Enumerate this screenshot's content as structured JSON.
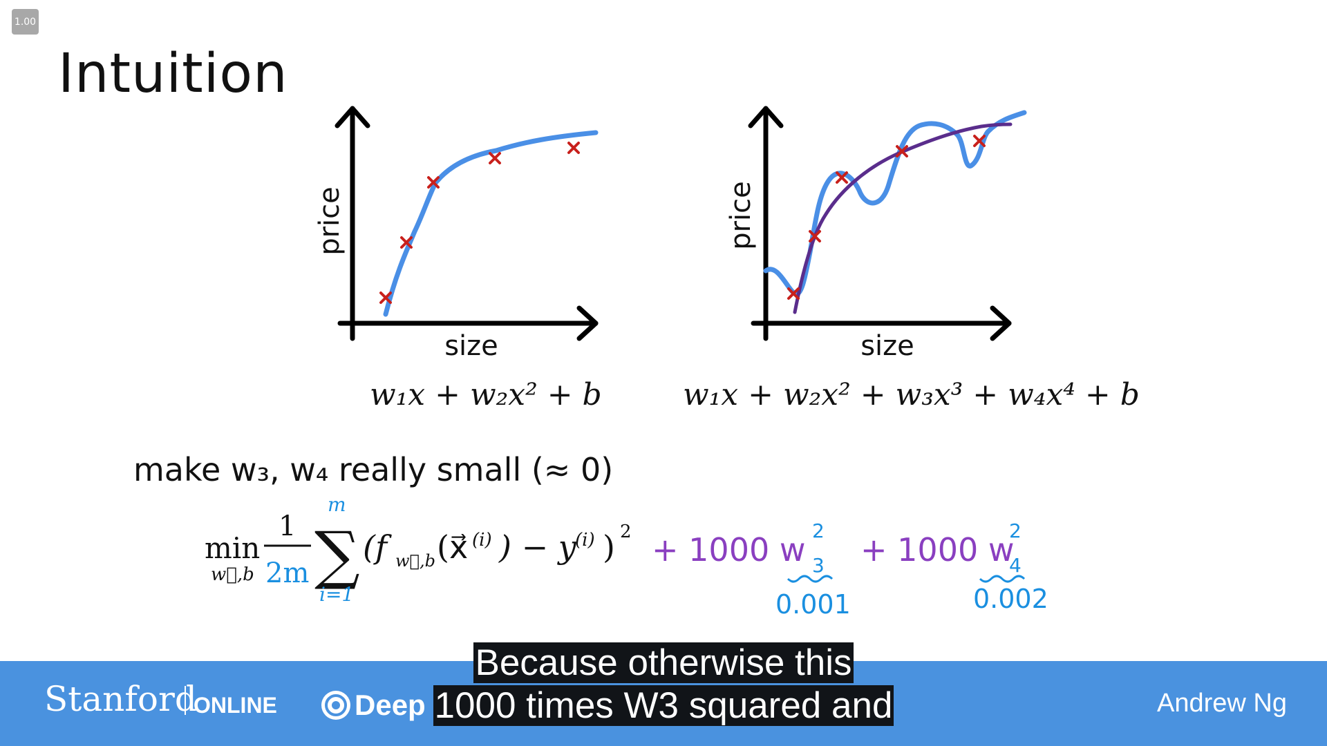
{
  "player": {
    "speed": "1.00"
  },
  "slide": {
    "title": "Intuition",
    "left_chart": {
      "ylabel": "price",
      "xlabel": "size"
    },
    "right_chart": {
      "ylabel": "price",
      "xlabel": "size"
    },
    "formula_left": "w₁x + w₂x² + b",
    "formula_right": "w₁x + w₂x² + w₃x³ + w₄x⁴ + b",
    "make_text": "make w₃, w₄ really small (≈ 0)",
    "cost": {
      "min": "min",
      "min_sub": "w⃗,b",
      "frac_num": "1",
      "frac_den": "2m",
      "sum_top": "m",
      "sum_bottom": "i=1",
      "body": "(f",
      "body_sub": "w⃗,b",
      "body_rest": "(x⃗",
      "sup_i": "(i)",
      "minus_y": ") − y",
      "sup_i2": "(i)",
      "close": ")",
      "sq": "2"
    },
    "handwritten": {
      "term1": "+ 1000 w",
      "term1_sub": "3",
      "term1_sup": "2",
      "term2": "+ 1000 w",
      "term2_sub": "4",
      "term2_sup": "2",
      "note1": "0.001",
      "note2": "0.002"
    }
  },
  "footer": {
    "brand": "Stanford",
    "brand_suffix": "ONLINE",
    "partner": "Deep",
    "presenter": "Andrew Ng"
  },
  "captions": {
    "line1": "Because otherwise this",
    "line2": "1000 times W3 squared and"
  },
  "colors": {
    "curve_blue": "#4a8fe6",
    "curve_purple": "#5a2d8c",
    "marker_red": "#c8201c",
    "ink_blue": "#1a8fe0",
    "ink_purple": "#8a3fc0",
    "footer_bg": "#4a92df"
  }
}
